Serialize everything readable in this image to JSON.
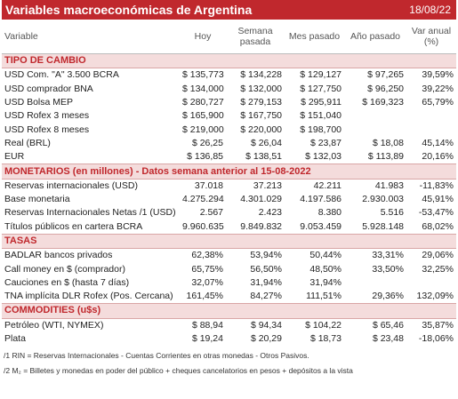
{
  "header": {
    "title": "Variables macroeconómicas de Argentina",
    "date": "18/08/22"
  },
  "columns": [
    "Variable",
    "Hoy",
    "Semana pasada",
    "Mes pasado",
    "Año pasado",
    "Var anual (%)"
  ],
  "sections": [
    {
      "title": "TIPO DE CAMBIO",
      "rows": [
        {
          "label": "USD Com. \"A\" 3.500 BCRA",
          "values": [
            "$ 135,773",
            "$ 134,228",
            "$ 129,127",
            "$ 97,265",
            "39,59%"
          ]
        },
        {
          "label": "USD comprador BNA",
          "values": [
            "$ 134,000",
            "$ 132,000",
            "$ 127,750",
            "$ 96,250",
            "39,22%"
          ]
        },
        {
          "label": "USD Bolsa MEP",
          "values": [
            "$ 280,727",
            "$ 279,153",
            "$ 295,911",
            "$ 169,323",
            "65,79%"
          ]
        },
        {
          "label": "USD Rofex 3 meses",
          "values": [
            "$ 165,900",
            "$ 167,750",
            "$ 151,040",
            null,
            null
          ]
        },
        {
          "label": "USD Rofex 8 meses",
          "values": [
            "$ 219,000",
            "$ 220,000",
            "$ 198,700",
            null,
            null
          ]
        },
        {
          "label": "Real (BRL)",
          "values": [
            "$ 26,25",
            "$ 26,04",
            "$ 23,87",
            "$ 18,08",
            "45,14%"
          ]
        },
        {
          "label": "EUR",
          "values": [
            "$ 136,85",
            "$ 138,51",
            "$ 132,03",
            "$ 113,89",
            "20,16%"
          ]
        }
      ]
    },
    {
      "title": "MONETARIOS (en millones) - Datos semana anterior al 15-08-2022",
      "rows": [
        {
          "label": "Reservas internacionales (USD)",
          "values": [
            "37.018",
            "37.213",
            "42.211",
            "41.983",
            "-11,83%"
          ]
        },
        {
          "label": "Base monetaria",
          "values": [
            "4.275.294",
            "4.301.029",
            "4.197.586",
            "2.930.003",
            "45,91%"
          ]
        },
        {
          "label": "Reservas Internacionales Netas /1 (USD)",
          "values": [
            "2.567",
            "2.423",
            "8.380",
            "5.516",
            "-53,47%"
          ]
        },
        {
          "label": "Títulos públicos en cartera BCRA",
          "values": [
            "9.960.635",
            "9.849.832",
            "9.053.459",
            "5.928.148",
            "68,02%"
          ]
        }
      ]
    },
    {
      "title": "TASAS",
      "rows": [
        {
          "label": "BADLAR bancos privados",
          "values": [
            "62,38%",
            "53,94%",
            "50,44%",
            "33,31%",
            "29,06%"
          ]
        },
        {
          "label": "Call money en $ (comprador)",
          "values": [
            "65,75%",
            "56,50%",
            "48,50%",
            "33,50%",
            "32,25%"
          ]
        },
        {
          "label": "Cauciones en $ (hasta 7 días)",
          "values": [
            "32,07%",
            "31,94%",
            "31,94%",
            null,
            null
          ]
        },
        {
          "label": "TNA implícita DLR Rofex (Pos. Cercana)",
          "values": [
            "161,45%",
            "84,27%",
            "111,51%",
            "29,36%",
            "132,09%"
          ]
        }
      ]
    },
    {
      "title": "COMMODITIES (u$s)",
      "rows": [
        {
          "label": "Petróleo (WTI, NYMEX)",
          "values": [
            "$ 88,94",
            "$ 94,34",
            "$ 104,22",
            "$ 65,46",
            "35,87%"
          ]
        },
        {
          "label": "Plata",
          "values": [
            "$ 19,24",
            "$ 20,29",
            "$ 18,73",
            "$ 23,48",
            "-18,06%"
          ]
        }
      ]
    }
  ],
  "footnotes": [
    "/1 RIN = Reservas Internacionales - Cuentas Corrientes en otras monedas - Otros Pasivos.",
    "/2 M₂ = Billetes y monedas en poder del público + cheques cancelatorios en pesos + depósitos a la vista"
  ]
}
